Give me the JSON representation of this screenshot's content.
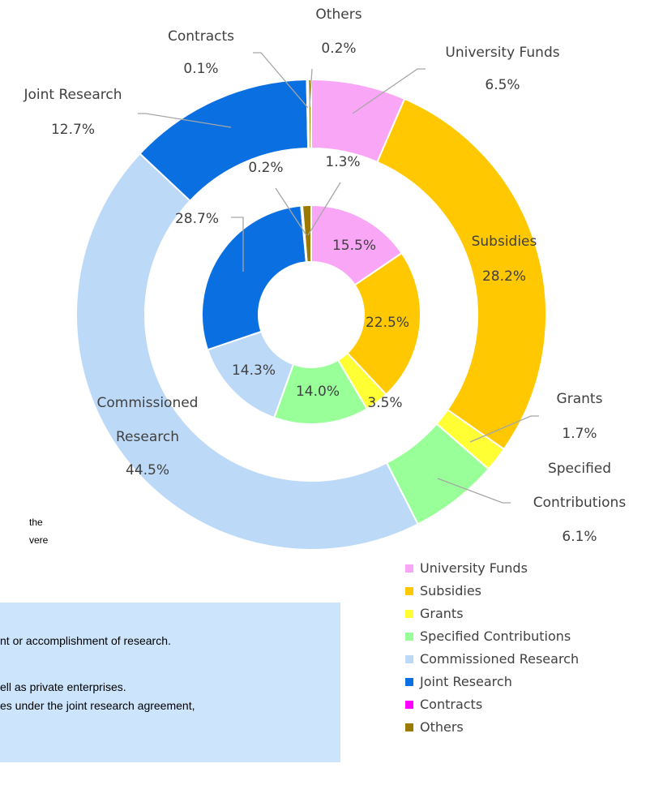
{
  "chart_data": {
    "type": "nested-donut",
    "categories": [
      "University Funds",
      "Subsidies",
      "Grants",
      "Specified Contributions",
      "Commissioned Research",
      "Joint Research",
      "Contracts",
      "Others"
    ],
    "colors": [
      "#f9a6f6",
      "#ffc800",
      "#ffff33",
      "#99ff99",
      "#bdd9f8",
      "#0a6fe0",
      "#ff00ff",
      "#9c7a00"
    ],
    "series": [
      {
        "values": [
          6.5,
          28.2,
          1.7,
          6.1,
          44.5,
          12.7,
          0.1,
          0.2
        ],
        "value_labels": [
          "6.5%",
          "28.2%",
          "1.7%",
          "6.1%",
          "44.5%",
          "12.7%",
          "0.1%",
          "0.2%"
        ]
      },
      {
        "values": [
          15.5,
          22.5,
          3.5,
          14.0,
          14.3,
          28.7,
          0.2,
          1.3
        ],
        "value_labels": [
          "15.5%",
          "22.5%",
          "3.5%",
          "14.0%",
          "14.3%",
          "28.7%",
          "0.2%",
          "1.3%"
        ]
      }
    ],
    "legend": "bottom-right"
  },
  "fragments": {
    "left_note": [
      "the",
      "vere"
    ],
    "box": [
      "nt or accomplishment of research.",
      "ell as private enterprises.",
      "es under the joint research agreement,"
    ]
  }
}
